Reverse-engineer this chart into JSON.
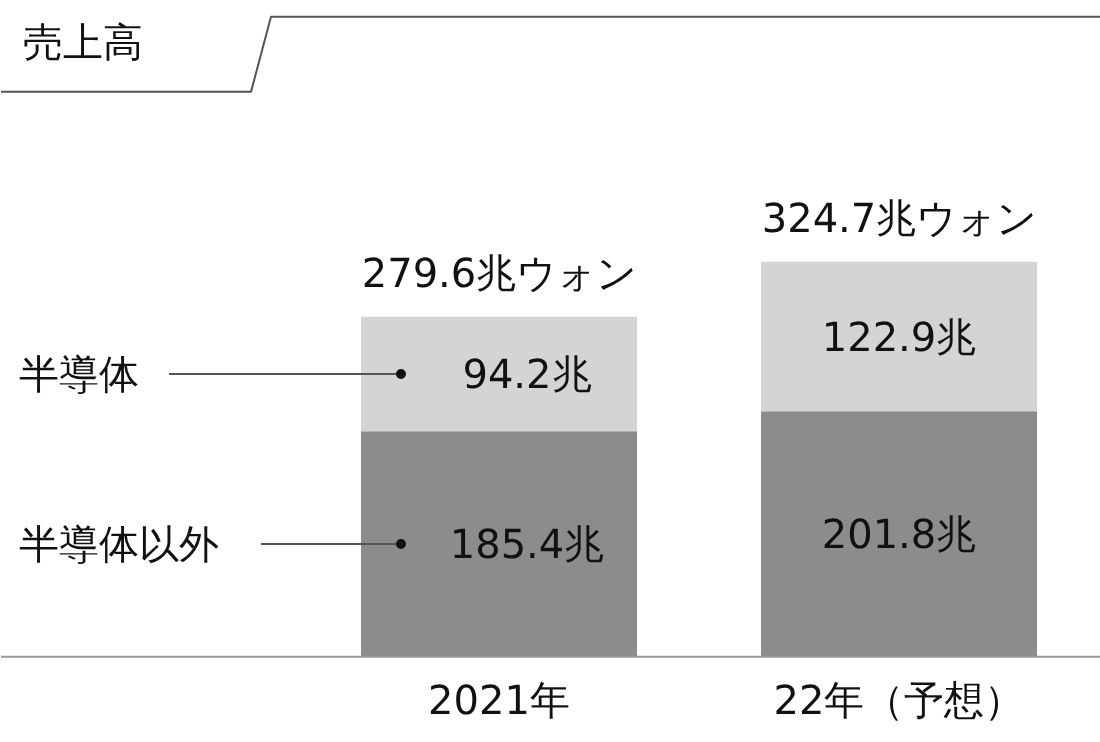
{
  "chart_data": {
    "type": "bar",
    "title": "売上高",
    "categories": [
      "2021年",
      "22年（予想）"
    ],
    "stacked": true,
    "series": [
      {
        "name": "半導体以外",
        "color": "#8c8c8c",
        "values": [
          185.4,
          201.8
        ],
        "value_labels": [
          "185.4兆",
          "201.8兆"
        ]
      },
      {
        "name": "半導体",
        "color": "#d4d4d4",
        "values": [
          94.2,
          122.9
        ],
        "value_labels": [
          "94.2兆",
          "122.9兆"
        ]
      }
    ],
    "totals": [
      "279.6兆ウォン",
      "324.7兆ウォン"
    ],
    "legend": false,
    "grid": false
  }
}
